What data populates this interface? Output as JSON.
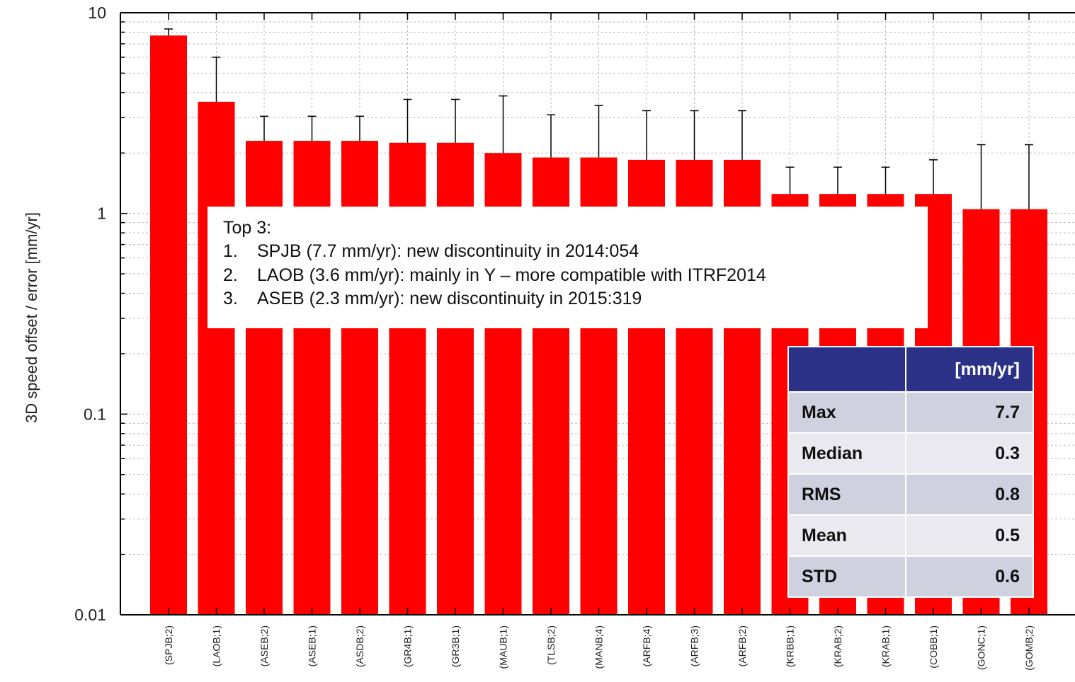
{
  "chart_data": {
    "type": "bar",
    "scale": "log",
    "ylabel": "3D speed offset / error [mm/yr]",
    "ylim": [
      0.01,
      10
    ],
    "yticks": [
      "10",
      "1",
      "0.1",
      "0.01"
    ],
    "grid": true,
    "categories": [
      "(SPJB;2)",
      "(LAOB;1)",
      "(ASEB;2)",
      "(ASEB;1)",
      "(ASDB;2)",
      "(GR4B;1)",
      "(GR3B;1)",
      "(MAUB;1)",
      "(TLSB;2)",
      "(MANB;4)",
      "(ARFB;4)",
      "(ARFB;3)",
      "(ARFB;2)",
      "(KRBB;1)",
      "(KRAB;2)",
      "(KRAB;1)",
      "(COBB;1)",
      "(GONC;1)",
      "(GOMB;2)"
    ],
    "values": [
      7.7,
      3.6,
      2.3,
      2.3,
      2.3,
      2.25,
      2.25,
      2.0,
      1.9,
      1.9,
      1.85,
      1.85,
      1.85,
      1.25,
      1.25,
      1.25,
      1.25,
      1.05,
      1.05
    ],
    "error_upper": [
      8.3,
      6.0,
      3.05,
      3.05,
      3.05,
      3.7,
      3.7,
      3.85,
      3.1,
      3.45,
      3.25,
      3.25,
      3.25,
      1.7,
      1.7,
      1.7,
      1.85,
      2.2,
      2.2
    ],
    "bar_color": "#ff0000"
  },
  "annotation": {
    "heading": "Top 3:",
    "items": [
      {
        "num": "1.",
        "text": "SPJB  (7.7 mm/yr): new discontinuity in 2014:054"
      },
      {
        "num": "2.",
        "text": "LAOB (3.6 mm/yr): mainly in Y – more compatible with ITRF2014"
      },
      {
        "num": "3.",
        "text": "ASEB (2.3 mm/yr): new discontinuity in 2015:319"
      }
    ]
  },
  "stats_table": {
    "header": "[mm/yr]",
    "header_color": "#2b3187",
    "rows": [
      {
        "label": "Max",
        "value": "7.7"
      },
      {
        "label": "Median",
        "value": "0.3"
      },
      {
        "label": "RMS",
        "value": "0.8"
      },
      {
        "label": "Mean",
        "value": "0.5"
      },
      {
        "label": "STD",
        "value": "0.6"
      }
    ]
  }
}
